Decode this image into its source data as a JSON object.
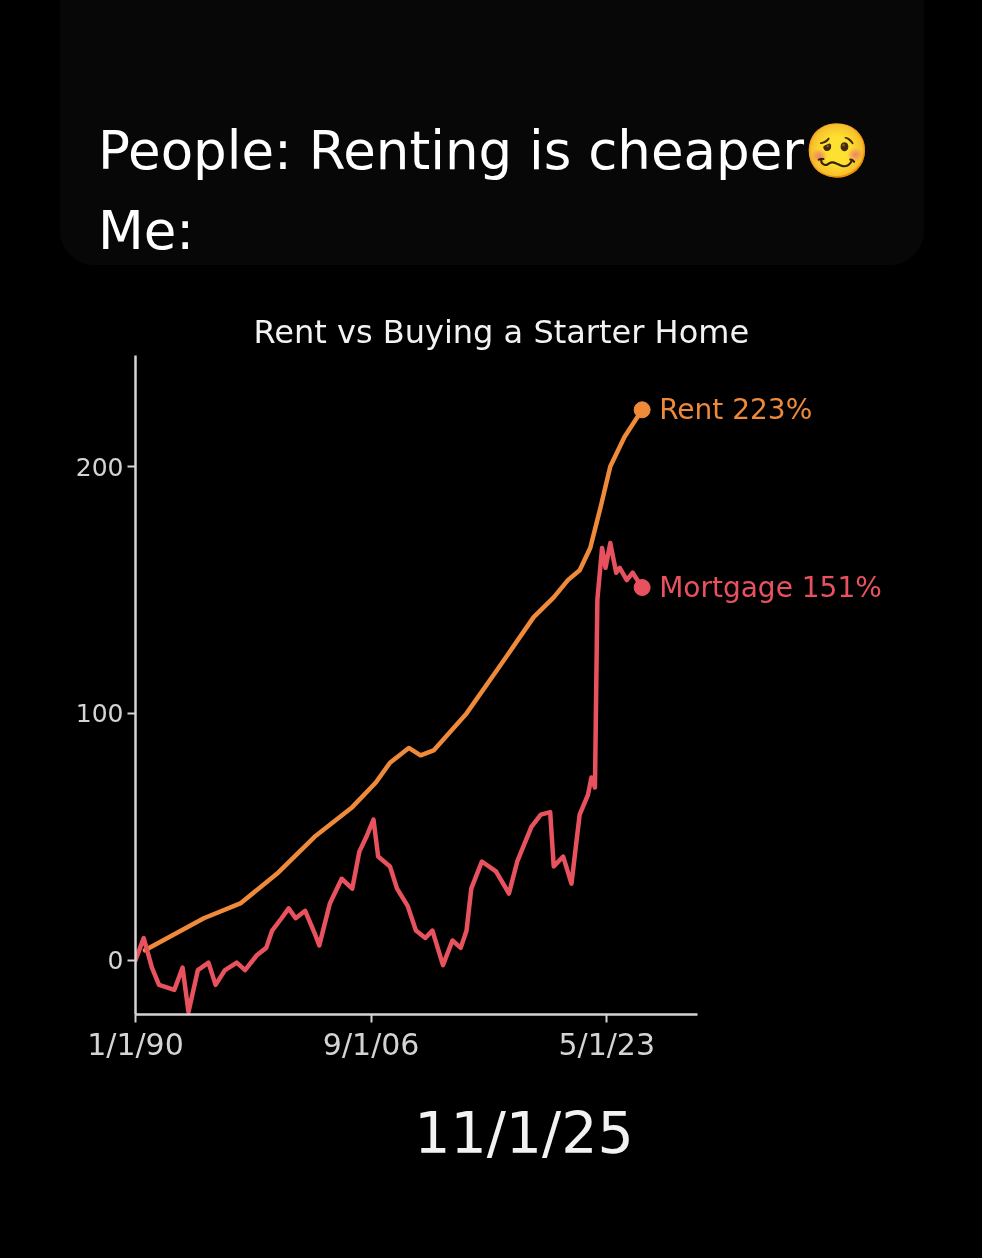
{
  "chart_data": {
    "type": "line",
    "title": "Rent vs Buying a Starter Home",
    "annotations": [
      "People: Renting is cheaper🥴\nMe:",
      "11/1/25"
    ],
    "xlim": [
      "1990-01-01",
      "2029-10-01"
    ],
    "xticks": [
      {
        "value": "1990-01-01",
        "label": "1/1/90"
      },
      {
        "value": "2006-09-01",
        "label": "9/1/06"
      },
      {
        "value": "2023-05-01",
        "label": "5/1/23"
      }
    ],
    "ylim": [
      -22,
      245
    ],
    "yticks": [
      0,
      100,
      200
    ],
    "series": [
      {
        "name": "Rent",
        "color": "#ee8a3a",
        "x": [
          "1990-09",
          "1994-11",
          "1997-06",
          "2000-01",
          "2002-09",
          "2005-05",
          "2007-01",
          "2008-01",
          "2009-05",
          "2010-03",
          "2011-02",
          "2013-06",
          "2015-10",
          "2018-03",
          "2019-08",
          "2020-08",
          "2021-06",
          "2022-03",
          "2022-12",
          "2023-08",
          "2024-08",
          "2025-11"
        ],
        "values": [
          4,
          17,
          23,
          35,
          50,
          62,
          72,
          80,
          86,
          83,
          85,
          100,
          119,
          139,
          147,
          154,
          158,
          167,
          184,
          200,
          212,
          223
        ],
        "value_labels": [
          null,
          null,
          null,
          null,
          null,
          null,
          null,
          null,
          null,
          null,
          null,
          null,
          null,
          null,
          null,
          null,
          null,
          null,
          null,
          null,
          null,
          "223%"
        ]
      },
      {
        "name": "Mortgage",
        "color": "#e8525e",
        "x": [
          "1990-01",
          "1990-08",
          "1991-03",
          "1991-09",
          "1992-10",
          "1993-05",
          "1993-10",
          "1994-06",
          "1995-03",
          "1995-09",
          "1996-05",
          "1997-03",
          "1997-10",
          "1998-08",
          "1999-04",
          "1999-09",
          "2000-05",
          "2000-11",
          "2001-05",
          "2002-01",
          "2002-09",
          "2003-01",
          "2003-10",
          "2004-08",
          "2005-05",
          "2005-11",
          "2006-05",
          "2006-11",
          "2007-03",
          "2008-01",
          "2008-07",
          "2009-04",
          "2009-11",
          "2010-07",
          "2011-01",
          "2011-10",
          "2012-06",
          "2013-01",
          "2013-06",
          "2013-10",
          "2014-07",
          "2015-07",
          "2016-06",
          "2017-01",
          "2018-01",
          "2018-09",
          "2019-05",
          "2019-08",
          "2020-04",
          "2020-11",
          "2021-06",
          "2022-01",
          "2022-04",
          "2022-07",
          "2022-09",
          "2023-01",
          "2023-04",
          "2023-08",
          "2024-01",
          "2024-04",
          "2024-10",
          "2025-03",
          "2025-11"
        ],
        "values": [
          0,
          9,
          -3,
          -10,
          -12,
          -3,
          -21,
          -4,
          -1,
          -10,
          -4,
          -1,
          -4,
          2,
          5,
          12,
          17,
          21,
          17,
          20,
          11,
          6,
          23,
          33,
          29,
          44,
          50,
          57,
          42,
          38,
          29,
          22,
          12,
          9,
          12,
          -2,
          8,
          5,
          12,
          29,
          40,
          36,
          27,
          40,
          54,
          59,
          60,
          38,
          42,
          31,
          59,
          67,
          74,
          70,
          146,
          167,
          159,
          169,
          157,
          159,
          154,
          157,
          151
        ],
        "value_labels": [
          null,
          null,
          null,
          null,
          null,
          null,
          null,
          null,
          null,
          null,
          null,
          null,
          null,
          null,
          null,
          null,
          null,
          null,
          null,
          null,
          null,
          null,
          null,
          null,
          null,
          null,
          null,
          null,
          null,
          null,
          null,
          null,
          null,
          null,
          null,
          null,
          null,
          null,
          null,
          null,
          null,
          null,
          null,
          null,
          null,
          null,
          null,
          null,
          null,
          null,
          null,
          null,
          null,
          null,
          null,
          null,
          null,
          null,
          null,
          null,
          null,
          null,
          "151%"
        ]
      }
    ]
  }
}
